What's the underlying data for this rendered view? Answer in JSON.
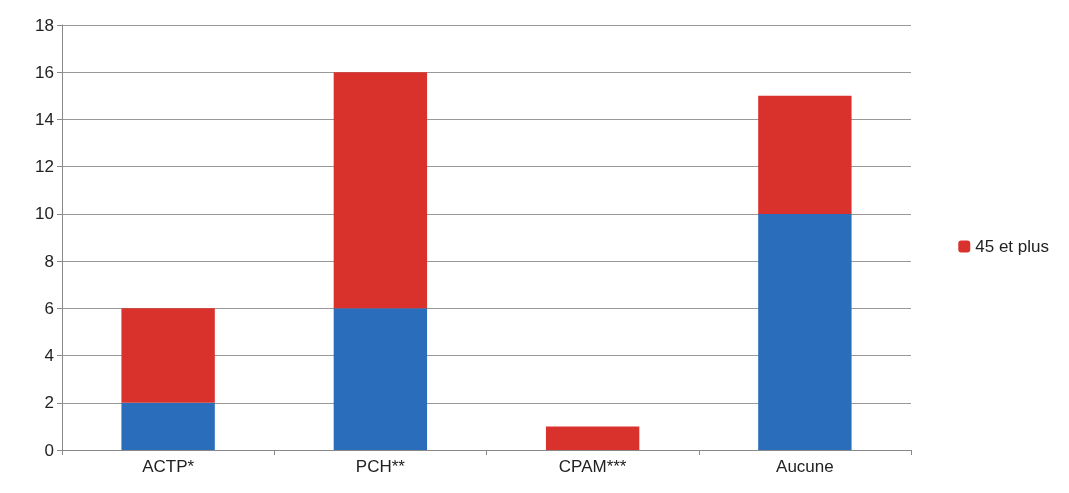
{
  "chart_data": {
    "type": "bar",
    "stacked": true,
    "categories": [
      "ACTP*",
      "PCH**",
      "CPAM***",
      "Aucune"
    ],
    "series": [
      {
        "color": "#2a6ebb",
        "values": [
          2,
          6,
          0,
          10
        ]
      },
      {
        "name": "45 et plus",
        "color": "#d9322d",
        "values": [
          4,
          10,
          1,
          5
        ]
      }
    ],
    "ylim": [
      0,
      18
    ],
    "yticks": [
      0,
      2,
      4,
      6,
      8,
      10,
      12,
      14,
      16,
      18
    ],
    "grid": "y",
    "legend": "right"
  }
}
